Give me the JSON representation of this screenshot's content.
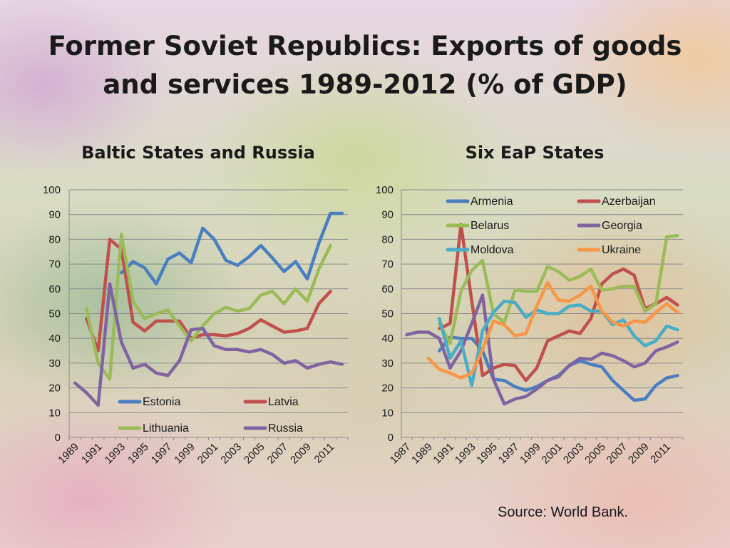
{
  "title_line1": "Former Soviet Republics: Exports of goods",
  "title_line2": "and services 1989-2012 (% of GDP)",
  "source": "Source: World Bank.",
  "chart_data": [
    {
      "type": "line",
      "title": "Baltic States and Russia",
      "xlim": [
        1989,
        2012
      ],
      "ylim": [
        0,
        100
      ],
      "yticks": [
        0,
        10,
        20,
        30,
        40,
        50,
        60,
        70,
        80,
        90,
        100
      ],
      "xtick_labels": [
        "1989",
        "1991",
        "1993",
        "1995",
        "1997",
        "1999",
        "2001",
        "2003",
        "2005",
        "2007",
        "2009",
        "2011"
      ],
      "grid": true,
      "legend": "bottom-center",
      "series": [
        {
          "name": "Estonia",
          "color": "#4a7fbf",
          "points": [
            [
              1993,
              66.5
            ],
            [
              1994,
              71
            ],
            [
              1995,
              68.5
            ],
            [
              1996,
              62
            ],
            [
              1997,
              72
            ],
            [
              1998,
              74.5
            ],
            [
              1999,
              70.5
            ],
            [
              2000,
              84.5
            ],
            [
              2001,
              80
            ],
            [
              2002,
              71.5
            ],
            [
              2003,
              69.5
            ],
            [
              2004,
              73
            ],
            [
              2005,
              77.5
            ],
            [
              2006,
              72.5
            ],
            [
              2007,
              67
            ],
            [
              2008,
              71
            ],
            [
              2009,
              64
            ],
            [
              2010,
              78.5
            ],
            [
              2011,
              90.5
            ],
            [
              2012,
              90.5
            ]
          ]
        },
        {
          "name": "Latvia",
          "color": "#c0504d",
          "points": [
            [
              1990,
              48
            ],
            [
              1991,
              35
            ],
            [
              1992,
              80
            ],
            [
              1993,
              76
            ],
            [
              1994,
              46.5
            ],
            [
              1995,
              43
            ],
            [
              1996,
              47
            ],
            [
              1997,
              47
            ],
            [
              1998,
              47
            ],
            [
              1999,
              40
            ],
            [
              2000,
              41.5
            ],
            [
              2001,
              41.5
            ],
            [
              2002,
              41
            ],
            [
              2003,
              42
            ],
            [
              2004,
              44
            ],
            [
              2005,
              47.5
            ],
            [
              2006,
              45
            ],
            [
              2007,
              42.5
            ],
            [
              2008,
              43
            ],
            [
              2009,
              44
            ],
            [
              2010,
              54
            ],
            [
              2011,
              59
            ]
          ]
        },
        {
          "name": "Lithuania",
          "color": "#9bbb59",
          "points": [
            [
              1990,
              52
            ],
            [
              1991,
              30
            ],
            [
              1992,
              23.5
            ],
            [
              1993,
              82
            ],
            [
              1994,
              55
            ],
            [
              1995,
              48
            ],
            [
              1996,
              50
            ],
            [
              1997,
              51.5
            ],
            [
              1998,
              45
            ],
            [
              1999,
              39
            ],
            [
              2000,
              45
            ],
            [
              2001,
              50
            ],
            [
              2002,
              52.5
            ],
            [
              2003,
              51
            ],
            [
              2004,
              52
            ],
            [
              2005,
              57.5
            ],
            [
              2006,
              59
            ],
            [
              2007,
              54
            ],
            [
              2008,
              60
            ],
            [
              2009,
              55
            ],
            [
              2010,
              68
            ],
            [
              2011,
              77.5
            ]
          ]
        },
        {
          "name": "Russia",
          "color": "#8064a2",
          "points": [
            [
              1989,
              22
            ],
            [
              1990,
              18
            ],
            [
              1991,
              13
            ],
            [
              1992,
              62
            ],
            [
              1993,
              38.5
            ],
            [
              1994,
              28
            ],
            [
              1995,
              29.5
            ],
            [
              1996,
              26
            ],
            [
              1997,
              25
            ],
            [
              1998,
              31
            ],
            [
              1999,
              43.5
            ],
            [
              2000,
              44
            ],
            [
              2001,
              37
            ],
            [
              2002,
              35.5
            ],
            [
              2003,
              35.5
            ],
            [
              2004,
              34.5
            ],
            [
              2005,
              35.5
            ],
            [
              2006,
              33.5
            ],
            [
              2007,
              30
            ],
            [
              2008,
              31
            ],
            [
              2009,
              28
            ],
            [
              2010,
              29.5
            ],
            [
              2011,
              30.5
            ],
            [
              2012,
              29.5
            ]
          ]
        }
      ]
    },
    {
      "type": "line",
      "title": "Six EaP States",
      "xlim": [
        1987,
        2012
      ],
      "ylim": [
        0,
        100
      ],
      "yticks": [
        0,
        10,
        20,
        30,
        40,
        50,
        60,
        70,
        80,
        90,
        100
      ],
      "xtick_labels": [
        "1987",
        "1989",
        "1991",
        "1993",
        "1995",
        "1997",
        "1999",
        "2001",
        "2003",
        "2005",
        "2007",
        "2009",
        "2011"
      ],
      "grid": true,
      "legend": "top",
      "series": [
        {
          "name": "Armenia",
          "color": "#4a7fbf",
          "points": [
            [
              1990,
              35
            ],
            [
              1991,
              40.5
            ],
            [
              1992,
              40
            ],
            [
              1993,
              40
            ],
            [
              1994,
              35
            ],
            [
              1995,
              23.5
            ],
            [
              1996,
              23
            ],
            [
              1997,
              20.5
            ],
            [
              1998,
              19
            ],
            [
              1999,
              20.5
            ],
            [
              2000,
              23
            ],
            [
              2001,
              25
            ],
            [
              2002,
              29
            ],
            [
              2003,
              31
            ],
            [
              2004,
              29.5
            ],
            [
              2005,
              28.5
            ],
            [
              2006,
              23
            ],
            [
              2007,
              19
            ],
            [
              2008,
              15
            ],
            [
              2009,
              15.5
            ],
            [
              2010,
              21
            ],
            [
              2011,
              24
            ],
            [
              2012,
              25
            ]
          ]
        },
        {
          "name": "Azerbaijan",
          "color": "#c0504d",
          "points": [
            [
              1990,
              44
            ],
            [
              1991,
              46
            ],
            [
              1992,
              86
            ],
            [
              1993,
              55
            ],
            [
              1994,
              25
            ],
            [
              1995,
              28
            ],
            [
              1996,
              29.5
            ],
            [
              1997,
              29
            ],
            [
              1998,
              23
            ],
            [
              1999,
              28
            ],
            [
              2000,
              39
            ],
            [
              2001,
              41
            ],
            [
              2002,
              43
            ],
            [
              2003,
              42
            ],
            [
              2004,
              48
            ],
            [
              2005,
              62
            ],
            [
              2006,
              66
            ],
            [
              2007,
              68
            ],
            [
              2008,
              65.5
            ],
            [
              2009,
              52
            ],
            [
              2010,
              54
            ],
            [
              2011,
              56.5
            ],
            [
              2012,
              53.5
            ]
          ]
        },
        {
          "name": "Belarus",
          "color": "#9bbb59",
          "points": [
            [
              1990,
              46
            ],
            [
              1991,
              38
            ],
            [
              1992,
              59
            ],
            [
              1993,
              67.5
            ],
            [
              1994,
              71.5
            ],
            [
              1995,
              50
            ],
            [
              1996,
              46.5
            ],
            [
              1997,
              59.5
            ],
            [
              1998,
              59
            ],
            [
              1999,
              59
            ],
            [
              2000,
              69
            ],
            [
              2001,
              67
            ],
            [
              2002,
              63.5
            ],
            [
              2003,
              65
            ],
            [
              2004,
              68
            ],
            [
              2005,
              59.5
            ],
            [
              2006,
              60
            ],
            [
              2007,
              61
            ],
            [
              2008,
              61
            ],
            [
              2009,
              51
            ],
            [
              2010,
              54
            ],
            [
              2011,
              81
            ],
            [
              2012,
              81.5
            ]
          ]
        },
        {
          "name": "Georgia",
          "color": "#8064a2",
          "points": [
            [
              1987,
              41.5
            ],
            [
              1988,
              42.5
            ],
            [
              1989,
              42.5
            ],
            [
              1990,
              40
            ],
            [
              1991,
              28
            ],
            [
              1992,
              35
            ],
            [
              1993,
              46
            ],
            [
              1994,
              57.5
            ],
            [
              1995,
              23.5
            ],
            [
              1996,
              13.5
            ],
            [
              1997,
              15.5
            ],
            [
              1998,
              16.5
            ],
            [
              1999,
              19.5
            ],
            [
              2000,
              23
            ],
            [
              2001,
              24.5
            ],
            [
              2002,
              29
            ],
            [
              2003,
              32
            ],
            [
              2004,
              31.5
            ],
            [
              2005,
              34
            ],
            [
              2006,
              33
            ],
            [
              2007,
              31
            ],
            [
              2008,
              28.5
            ],
            [
              2009,
              30
            ],
            [
              2010,
              35
            ],
            [
              2011,
              36.5
            ],
            [
              2012,
              38.5
            ]
          ]
        },
        {
          "name": "Moldova",
          "color": "#4bacc6",
          "points": [
            [
              1990,
              48
            ],
            [
              1991,
              32
            ],
            [
              1992,
              39
            ],
            [
              1993,
              21
            ],
            [
              1994,
              43
            ],
            [
              1995,
              50.5
            ],
            [
              1996,
              55
            ],
            [
              1997,
              54.5
            ],
            [
              1998,
              48.5
            ],
            [
              1999,
              51.5
            ],
            [
              2000,
              50
            ],
            [
              2001,
              50
            ],
            [
              2002,
              53
            ],
            [
              2003,
              53.5
            ],
            [
              2004,
              51
            ],
            [
              2005,
              51
            ],
            [
              2006,
              45.5
            ],
            [
              2007,
              47.5
            ],
            [
              2008,
              41
            ],
            [
              2009,
              37
            ],
            [
              2010,
              39
            ],
            [
              2011,
              45
            ],
            [
              2012,
              43.5
            ]
          ]
        },
        {
          "name": "Ukraine",
          "color": "#f79646",
          "points": [
            [
              1989,
              32
            ],
            [
              1990,
              27.5
            ],
            [
              1991,
              26
            ],
            [
              1992,
              24
            ],
            [
              1993,
              26
            ],
            [
              1994,
              35.5
            ],
            [
              1995,
              47
            ],
            [
              1996,
              45.5
            ],
            [
              1997,
              41
            ],
            [
              1998,
              42
            ],
            [
              1999,
              53
            ],
            [
              2000,
              62.5
            ],
            [
              2001,
              55.5
            ],
            [
              2002,
              55
            ],
            [
              2003,
              57.5
            ],
            [
              2004,
              61
            ],
            [
              2005,
              51
            ],
            [
              2006,
              46.5
            ],
            [
              2007,
              45
            ],
            [
              2008,
              47
            ],
            [
              2009,
              46.5
            ],
            [
              2010,
              50.5
            ],
            [
              2011,
              54
            ],
            [
              2012,
              50.5
            ]
          ]
        }
      ]
    }
  ]
}
